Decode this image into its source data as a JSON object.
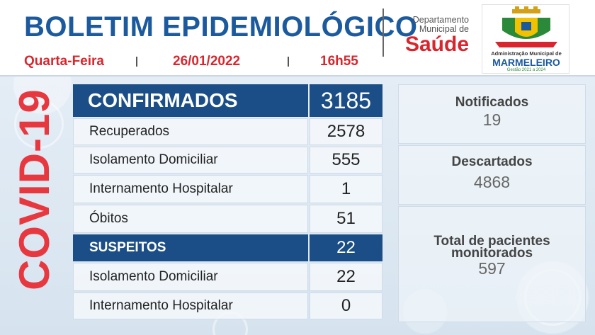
{
  "header": {
    "title": "BOLETIM EPIDEMIOLÓGICO",
    "weekday": "Quarta-Feira",
    "date": "26/01/2022",
    "time": "16h55"
  },
  "department": {
    "line1": "Departamento",
    "line2": "Municipal de",
    "name": "Saúde"
  },
  "logo": {
    "administration": "Administração Municipal de",
    "city": "MARMELEIRO",
    "term": "Gestão 2021 a 2024"
  },
  "side_title": "COVID-19",
  "table": {
    "confirmados": {
      "label": "CONFIRMADOS",
      "value": "3185"
    },
    "confirmed_rows": [
      {
        "label": "Recuperados",
        "value": "2578"
      },
      {
        "label": "Isolamento Domiciliar",
        "value": "555"
      },
      {
        "label": "Internamento Hospitalar",
        "value": "1"
      },
      {
        "label": "Óbitos",
        "value": "51"
      }
    ],
    "suspeitos": {
      "label": "SUSPEITOS",
      "value": "22"
    },
    "suspect_rows": [
      {
        "label": "Isolamento Domiciliar",
        "value": "22"
      },
      {
        "label": "Internamento Hospitalar",
        "value": "0"
      }
    ]
  },
  "stats": {
    "notificados": {
      "label": "Notificados",
      "value": "19"
    },
    "descartados": {
      "label": "Descartados",
      "value": "4868"
    },
    "monitorados": {
      "label_line1": "Total de pacientes",
      "label_line2": "monitorados",
      "value": "597"
    }
  },
  "colors": {
    "primary_blue": "#1b4e86",
    "accent_red": "#d9262e",
    "title_blue": "#1c5a9e"
  }
}
